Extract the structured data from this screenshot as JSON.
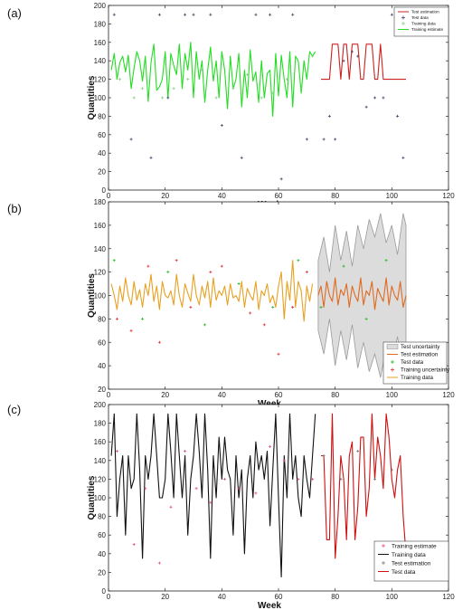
{
  "chart_data": [
    {
      "type": "line",
      "panel_label": "(a)",
      "xlabel": "Week",
      "ylabel": "Quantities",
      "xlim": [
        0,
        120
      ],
      "ylim": [
        0,
        200
      ],
      "xticks": [
        "0",
        "20",
        "40",
        "60",
        "80",
        "100",
        "120"
      ],
      "yticks": [
        "0",
        "20",
        "40",
        "60",
        "80",
        "100",
        "120",
        "140",
        "160",
        "180",
        "200"
      ],
      "legend_position": "top-right",
      "legend": [
        "Test estimation",
        "Test data",
        "Training data",
        "Training estimate"
      ],
      "series": [
        {
          "name": "Training estimate",
          "color": "#22dd22",
          "style": "line",
          "x": [
            1,
            2,
            3,
            4,
            5,
            6,
            7,
            8,
            9,
            10,
            11,
            12,
            13,
            14,
            15,
            16,
            17,
            18,
            19,
            20,
            21,
            22,
            23,
            24,
            25,
            26,
            27,
            28,
            29,
            30,
            31,
            32,
            33,
            34,
            35,
            36,
            37,
            38,
            39,
            40,
            41,
            42,
            43,
            44,
            45,
            46,
            47,
            48,
            49,
            50,
            51,
            52,
            53,
            54,
            55,
            56,
            57,
            58,
            59,
            60,
            61,
            62,
            63,
            64,
            65,
            66,
            67,
            68,
            69,
            70,
            71,
            72,
            73
          ],
          "y": [
            130,
            148,
            120,
            138,
            145,
            128,
            146,
            110,
            132,
            150,
            140,
            118,
            145,
            96,
            138,
            158,
            108,
            112,
            120,
            150,
            100,
            148,
            135,
            125,
            158,
            110,
            148,
            130,
            160,
            100,
            150,
            120,
            140,
            95,
            130,
            155,
            118,
            140,
            100,
            150,
            130,
            88,
            145,
            110,
            120,
            148,
            90,
            130,
            100,
            152,
            118,
            128,
            95,
            140,
            100,
            126,
            130,
            80,
            148,
            102,
            146,
            120,
            100,
            150,
            90,
            145,
            140,
            105,
            140,
            120,
            150,
            145,
            150
          ]
        },
        {
          "name": "Training data",
          "color": "#88cc88",
          "style": "marker",
          "x": [
            4,
            9,
            12,
            19,
            23,
            28,
            33,
            38,
            44,
            49,
            54,
            58,
            63,
            68,
            72
          ],
          "y": [
            120,
            100,
            110,
            100,
            110,
            120,
            130,
            100,
            110,
            125,
            100,
            105,
            120,
            110,
            145
          ]
        },
        {
          "name": "Test estimation",
          "color": "#cc2222",
          "style": "line",
          "x": [
            75,
            76,
            77,
            78,
            79,
            80,
            81,
            82,
            83,
            84,
            85,
            86,
            87,
            88,
            89,
            90,
            91,
            92,
            93,
            94,
            95,
            96,
            97,
            98,
            99,
            100,
            101,
            102,
            103,
            104,
            105
          ],
          "y": [
            120,
            120,
            120,
            120,
            158,
            158,
            158,
            120,
            158,
            158,
            120,
            158,
            158,
            158,
            120,
            120,
            158,
            158,
            158,
            120,
            120,
            158,
            120,
            120,
            120,
            120,
            120,
            120,
            120,
            120,
            120
          ]
        },
        {
          "name": "Test data",
          "color": "#444466",
          "style": "marker",
          "x": [
            2,
            8,
            15,
            18,
            21,
            27,
            30,
            36,
            40,
            47,
            52,
            57,
            61,
            65,
            70,
            76,
            78,
            80,
            83,
            86,
            88,
            91,
            94,
            97,
            100,
            102,
            104
          ],
          "y": [
            190,
            55,
            35,
            190,
            100,
            190,
            190,
            190,
            70,
            35,
            190,
            190,
            12,
            190,
            55,
            55,
            80,
            55,
            140,
            150,
            145,
            90,
            100,
            100,
            190,
            80,
            35
          ]
        }
      ]
    },
    {
      "type": "line",
      "panel_label": "(b)",
      "xlabel": "Week",
      "ylabel": "Quantities",
      "xlim": [
        0,
        120
      ],
      "ylim": [
        20,
        180
      ],
      "xticks": [
        "0",
        "20",
        "40",
        "60",
        "80",
        "100",
        "120"
      ],
      "yticks": [
        "20",
        "40",
        "60",
        "80",
        "100",
        "120",
        "140",
        "160",
        "180"
      ],
      "legend_position": "bottom-right",
      "legend": [
        "Test uncertainty",
        "Test estimation",
        "Test data",
        "Training uncertainty",
        "Training data"
      ],
      "series": [
        {
          "name": "Training data",
          "color": "#e8a020",
          "style": "line",
          "x": [
            1,
            2,
            3,
            4,
            5,
            6,
            7,
            8,
            9,
            10,
            11,
            12,
            13,
            14,
            15,
            16,
            17,
            18,
            19,
            20,
            21,
            22,
            23,
            24,
            25,
            26,
            27,
            28,
            29,
            30,
            31,
            32,
            33,
            34,
            35,
            36,
            37,
            38,
            39,
            40,
            41,
            42,
            43,
            44,
            45,
            46,
            47,
            48,
            49,
            50,
            51,
            52,
            53,
            54,
            55,
            56,
            57,
            58,
            59,
            60,
            61,
            62,
            63,
            64,
            65,
            66,
            67,
            68,
            69,
            70,
            71,
            72
          ],
          "y": [
            110,
            100,
            88,
            108,
            95,
            115,
            100,
            92,
            112,
            96,
            105,
            90,
            110,
            100,
            118,
            95,
            108,
            88,
            112,
            100,
            98,
            104,
            92,
            118,
            100,
            90,
            110,
            102,
            95,
            118,
            100,
            92,
            108,
            98,
            112,
            90,
            115,
            96,
            104,
            100,
            108,
            92,
            110,
            98,
            100,
            95,
            112,
            90,
            106,
            100,
            96,
            112,
            88,
            104,
            100,
            110,
            94,
            100,
            90,
            108,
            120,
            80,
            112,
            96,
            130,
            90,
            112,
            104,
            78,
            108,
            95,
            110
          ]
        },
        {
          "name": "Test estimation",
          "color": "#e06a20",
          "style": "line",
          "x": [
            74,
            75,
            76,
            77,
            78,
            79,
            80,
            81,
            82,
            83,
            84,
            85,
            86,
            87,
            88,
            89,
            90,
            91,
            92,
            93,
            94,
            95,
            96,
            97,
            98,
            99,
            100,
            101,
            102,
            103,
            104,
            105
          ],
          "y": [
            100,
            108,
            90,
            112,
            100,
            95,
            115,
            92,
            105,
            100,
            110,
            90,
            108,
            100,
            95,
            115,
            92,
            104,
            100,
            112,
            88,
            106,
            100,
            95,
            115,
            92,
            108,
            100,
            96,
            112,
            90,
            100
          ]
        },
        {
          "name": "Test uncertainty",
          "color": "#bdbdbd",
          "style": "band",
          "x": [
            74,
            76,
            78,
            80,
            82,
            84,
            86,
            88,
            90,
            92,
            94,
            96,
            98,
            100,
            102,
            104,
            105
          ],
          "upper": [
            130,
            150,
            120,
            160,
            130,
            155,
            125,
            160,
            140,
            165,
            150,
            170,
            145,
            160,
            135,
            170,
            160
          ],
          "lower": [
            70,
            50,
            80,
            40,
            70,
            45,
            75,
            38,
            60,
            35,
            50,
            30,
            55,
            40,
            65,
            30,
            40
          ]
        },
        {
          "name": "Test data",
          "color": "#22bb22",
          "style": "marker",
          "x": [
            2,
            12,
            21,
            34,
            46,
            58,
            67,
            75,
            83,
            91,
            98
          ],
          "y": [
            130,
            80,
            120,
            75,
            110,
            90,
            130,
            90,
            125,
            80,
            130
          ]
        },
        {
          "name": "Training uncertainty",
          "color": "#e03030",
          "style": "marker",
          "x": [
            3,
            8,
            14,
            18,
            24,
            29,
            36,
            40,
            50,
            55,
            60,
            65,
            70
          ],
          "y": [
            80,
            70,
            125,
            60,
            130,
            90,
            120,
            125,
            85,
            75,
            50,
            90,
            120
          ]
        }
      ]
    },
    {
      "type": "line",
      "panel_label": "(c)",
      "xlabel": "Week",
      "ylabel": "Quantities",
      "xlim": [
        0,
        120
      ],
      "ylim": [
        0,
        200
      ],
      "xticks": [
        "0",
        "20",
        "40",
        "60",
        "80",
        "100",
        "120"
      ],
      "yticks": [
        "0",
        "20",
        "40",
        "60",
        "80",
        "100",
        "120",
        "140",
        "160",
        "180",
        "200"
      ],
      "legend_position": "bottom-right",
      "legend": [
        "Training estimate",
        "Training data",
        "Test estimation",
        "Test data"
      ],
      "series": [
        {
          "name": "Training data",
          "color": "#111111",
          "style": "line",
          "x": [
            1,
            2,
            3,
            4,
            5,
            6,
            7,
            8,
            9,
            10,
            11,
            12,
            13,
            14,
            15,
            16,
            17,
            18,
            19,
            20,
            21,
            22,
            23,
            24,
            25,
            26,
            27,
            28,
            29,
            30,
            31,
            32,
            33,
            34,
            35,
            36,
            37,
            38,
            39,
            40,
            41,
            42,
            43,
            44,
            45,
            46,
            47,
            48,
            49,
            50,
            51,
            52,
            53,
            54,
            55,
            56,
            57,
            58,
            59,
            60,
            61,
            62,
            63,
            64,
            65,
            66,
            67,
            68,
            69,
            70,
            71,
            72,
            73
          ],
          "y": [
            145,
            190,
            80,
            120,
            145,
            60,
            145,
            110,
            120,
            190,
            130,
            35,
            145,
            120,
            145,
            190,
            145,
            100,
            100,
            120,
            190,
            150,
            100,
            190,
            145,
            100,
            145,
            60,
            120,
            145,
            190,
            150,
            100,
            190,
            130,
            35,
            145,
            100,
            165,
            120,
            165,
            130,
            120,
            60,
            145,
            100,
            130,
            40,
            120,
            145,
            100,
            160,
            130,
            145,
            120,
            150,
            70,
            130,
            190,
            100,
            15,
            145,
            100,
            190,
            120,
            145,
            100,
            80,
            145,
            120,
            100,
            145,
            190
          ]
        },
        {
          "name": "Training estimate",
          "color": "#e05080",
          "style": "marker",
          "x": [
            3,
            9,
            13,
            18,
            22,
            27,
            31,
            36,
            41,
            46,
            52,
            57,
            62,
            67,
            72
          ],
          "y": [
            150,
            50,
            110,
            30,
            90,
            150,
            110,
            95,
            120,
            110,
            105,
            155,
            140,
            120,
            120
          ]
        },
        {
          "name": "Test data",
          "color": "#cc1111",
          "style": "line",
          "x": [
            75,
            76,
            77,
            78,
            79,
            80,
            81,
            82,
            83,
            84,
            85,
            86,
            87,
            88,
            89,
            90,
            91,
            92,
            93,
            94,
            95,
            96,
            97,
            98,
            99,
            100,
            101,
            102,
            103,
            104,
            105
          ],
          "y": [
            145,
            145,
            55,
            55,
            190,
            35,
            80,
            145,
            120,
            55,
            145,
            160,
            55,
            90,
            165,
            165,
            80,
            110,
            190,
            120,
            165,
            145,
            110,
            190,
            165,
            120,
            100,
            130,
            145,
            80,
            40
          ]
        },
        {
          "name": "Test estimation",
          "color": "#777777",
          "style": "marker",
          "x": [
            76,
            82,
            88,
            94,
            100
          ],
          "y": [
            145,
            120,
            150,
            120,
            130
          ]
        }
      ]
    }
  ]
}
